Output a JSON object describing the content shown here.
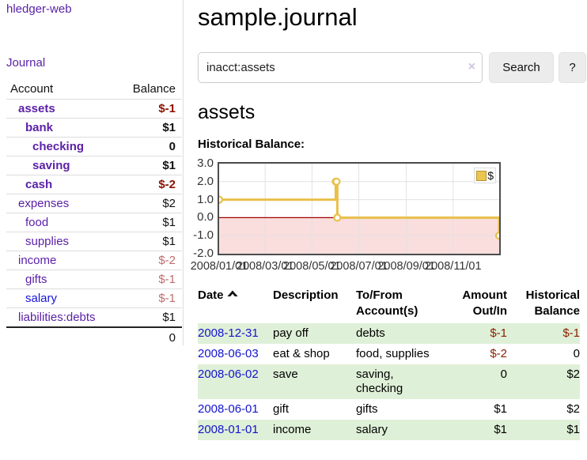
{
  "app": {
    "brand": "hledger-web",
    "nav_journal": "Journal"
  },
  "sidebar": {
    "header": {
      "account": "Account",
      "balance": "Balance"
    },
    "rows": [
      {
        "name": "assets",
        "balance": "$-1",
        "level": 1,
        "bold": true,
        "negative": true
      },
      {
        "name": "bank",
        "balance": "$1",
        "level": 2,
        "bold": true,
        "negative": false
      },
      {
        "name": "checking",
        "balance": "0",
        "level": 3,
        "bold": true,
        "negative": false
      },
      {
        "name": "saving",
        "balance": "$1",
        "level": 3,
        "bold": true,
        "negative": false
      },
      {
        "name": "cash",
        "balance": "$-2",
        "level": 2,
        "bold": true,
        "negative": true
      },
      {
        "name": "expenses",
        "balance": "$2",
        "level": 1,
        "bold": false,
        "negative": false
      },
      {
        "name": "food",
        "balance": "$1",
        "level": 2,
        "bold": false,
        "negative": false
      },
      {
        "name": "supplies",
        "balance": "$1",
        "level": 2,
        "bold": false,
        "negative": false
      },
      {
        "name": "income",
        "balance": "$-2",
        "level": 1,
        "bold": false,
        "negative": true
      },
      {
        "name": "gifts",
        "balance": "$-1",
        "level": 2,
        "bold": false,
        "negative": true
      },
      {
        "name": "salary",
        "balance": "$-1",
        "level": 2,
        "bold": false,
        "negative": true,
        "blue": true
      },
      {
        "name": "liabilities:debts",
        "balance": "$1",
        "level": 1,
        "bold": false,
        "negative": false
      }
    ],
    "total": "0"
  },
  "header": {
    "title": "sample.journal"
  },
  "search": {
    "value": "inacct:assets",
    "clear_icon": "×",
    "button_label": "Search",
    "help_label": "?"
  },
  "account_page": {
    "title": "assets",
    "chart_label": "Historical Balance:"
  },
  "chart_data": {
    "type": "line",
    "step": true,
    "title": "Historical Balance",
    "series": [
      {
        "name": "$",
        "x": [
          "2008-01-01",
          "2008-06-01",
          "2008-06-02",
          "2008-06-03",
          "2008-12-31"
        ],
        "values": [
          1,
          2,
          2,
          0,
          -1
        ]
      }
    ],
    "xrange": [
      "2008-01-01",
      "2008-12-31"
    ],
    "ylim": [
      -2,
      3
    ],
    "yticks": [
      3.0,
      2.0,
      1.0,
      0.0,
      -1.0,
      -2.0
    ],
    "xticks": [
      "2008/01/01",
      "2008/03/01",
      "2008/05/01",
      "2008/07/01",
      "2008/09/01",
      "2008/11/01"
    ],
    "legend": "$",
    "legend_position": "top-right",
    "grid": true,
    "line_color": "#e8c04a",
    "marker_fill": "#fffdf2",
    "negative_fill": "#fadddd",
    "zero_line_color": "#a00000"
  },
  "register": {
    "columns": [
      "Date",
      "Description",
      "To/From Account(s)",
      "Amount Out/In",
      "Historical Balance"
    ],
    "rows": [
      {
        "date": "2008-12-31",
        "description": "pay off",
        "accounts": "debts",
        "amount": "$-1",
        "balance": "$-1",
        "amount_negative": true,
        "balance_negative": true
      },
      {
        "date": "2008-06-03",
        "description": "eat & shop",
        "accounts": "food, supplies",
        "amount": "$-2",
        "balance": "0",
        "amount_negative": true,
        "balance_negative": false
      },
      {
        "date": "2008-06-02",
        "description": "save",
        "accounts": "saving, checking",
        "amount": "0",
        "balance": "$2",
        "amount_negative": false,
        "balance_negative": false
      },
      {
        "date": "2008-06-01",
        "description": "gift",
        "accounts": "gifts",
        "amount": "$1",
        "balance": "$2",
        "amount_negative": false,
        "balance_negative": false
      },
      {
        "date": "2008-01-01",
        "description": "income",
        "accounts": "salary",
        "amount": "$1",
        "balance": "$1",
        "amount_negative": false,
        "balance_negative": false
      }
    ]
  },
  "colors": {
    "account_link_purple": "#5b21a8",
    "date_link_blue": "#1414cc",
    "negative_red_bold": "#8b1200",
    "negative_red_muted": "#bd6d6d",
    "row_stripe_green": "#dff0d8",
    "chart_gold": "#e8c04a"
  }
}
